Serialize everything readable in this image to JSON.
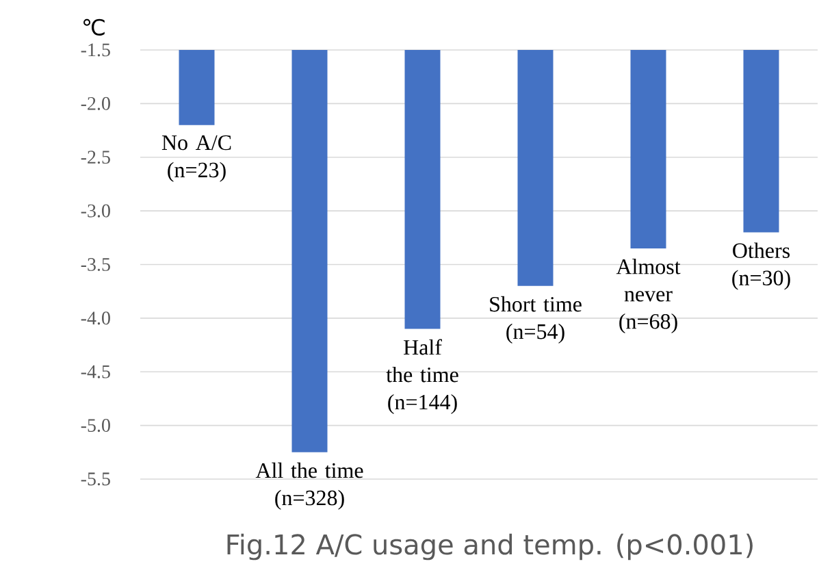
{
  "chart_data": {
    "type": "bar",
    "title": "Fig.12 A/C usage and temp. (p<0.001)",
    "ylabel": "℃",
    "categories": [
      "No A/C (n=23)",
      "All the time (n=328)",
      "Half the time (n=144)",
      "Short time (n=54)",
      "Almost never (n=68)",
      "Others (n=30)"
    ],
    "values": [
      -2.2,
      -5.25,
      -4.1,
      -3.7,
      -3.35,
      -3.2
    ],
    "color": "#4472c4",
    "ylim": [
      -5.5,
      -1.5
    ],
    "yticks": [
      {
        "value": -1.5,
        "label": "-1.5"
      },
      {
        "value": -2,
        "label": "-2.0"
      },
      {
        "value": -2.5,
        "label": "-2.5"
      },
      {
        "value": -3,
        "label": "-3.0"
      },
      {
        "value": -3.5,
        "label": "-3.5"
      },
      {
        "value": -4,
        "label": "-4.0"
      },
      {
        "value": -4.5,
        "label": "-4.5"
      },
      {
        "value": -5,
        "label": "-5.0"
      },
      {
        "value": -5.5,
        "label": "-5.5"
      }
    ],
    "grid": "y"
  }
}
